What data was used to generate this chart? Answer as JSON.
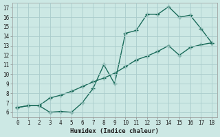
{
  "title": "",
  "xlabel": "Humidex (Indice chaleur)",
  "ylabel": "",
  "background_color": "#cce8e4",
  "grid_color": "#aacccc",
  "line_color": "#1a6b5a",
  "line1_x": [
    0,
    1,
    2,
    3,
    4,
    5,
    6,
    7,
    8,
    9,
    10,
    11,
    12,
    13,
    14,
    15,
    16,
    17,
    18
  ],
  "line1_y": [
    6.5,
    6.7,
    6.7,
    6.0,
    6.1,
    6.0,
    7.0,
    8.5,
    11.0,
    9.0,
    14.3,
    14.6,
    16.3,
    16.3,
    17.1,
    16.0,
    16.2,
    14.8,
    13.3
  ],
  "line2_x": [
    0,
    1,
    2,
    3,
    4,
    5,
    6,
    7,
    8,
    9,
    10,
    11,
    12,
    13,
    14,
    15,
    16,
    17,
    18
  ],
  "line2_y": [
    6.5,
    6.7,
    6.7,
    7.5,
    7.8,
    8.2,
    8.7,
    9.2,
    9.6,
    10.1,
    10.8,
    11.5,
    11.9,
    12.4,
    13.0,
    12.0,
    12.8,
    13.1,
    13.3
  ],
  "xlim": [
    -0.5,
    18.5
  ],
  "ylim": [
    5.5,
    17.5
  ],
  "xticks": [
    0,
    1,
    2,
    3,
    4,
    5,
    6,
    7,
    8,
    9,
    10,
    11,
    12,
    13,
    14,
    15,
    16,
    17,
    18
  ],
  "yticks": [
    6,
    7,
    8,
    9,
    10,
    11,
    12,
    13,
    14,
    15,
    16,
    17
  ],
  "marker": "+",
  "marker_size": 4,
  "line_width": 1.0,
  "tick_fontsize": 5.5,
  "xlabel_fontsize": 6.5
}
